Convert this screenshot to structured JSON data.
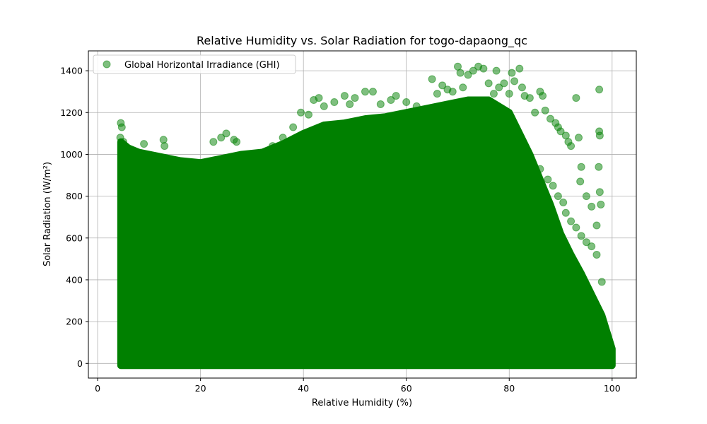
{
  "chart_data": {
    "type": "scatter",
    "title": "Relative Humidity vs. Solar Radiation for togo-dapaong_qc",
    "xlabel": "Relative Humidity (%)",
    "ylabel": "Solar Radiation (W/m²)",
    "xlim": [
      -1.8,
      104.7
    ],
    "ylim": [
      -70,
      1495
    ],
    "xticks": [
      0,
      20,
      40,
      60,
      80,
      100
    ],
    "yticks": [
      0,
      200,
      400,
      600,
      800,
      1000,
      1200,
      1400
    ],
    "grid": true,
    "legend_position": "top-left",
    "series": [
      {
        "name": "Global Horizontal Irradiance (GHI)",
        "color": "#008000",
        "alpha": 0.5,
        "envelope": {
          "x": [
            4.5,
            6,
            8,
            12,
            16,
            20,
            24,
            28,
            32,
            36,
            40,
            44,
            48,
            52,
            56,
            60,
            64,
            68,
            72,
            76,
            80,
            82,
            84,
            86,
            88,
            90,
            92,
            94,
            96,
            98,
            99,
            100
          ],
          "y_max": [
            1060,
            1030,
            1010,
            990,
            970,
            960,
            980,
            1000,
            1010,
            1050,
            1100,
            1140,
            1150,
            1170,
            1180,
            1200,
            1220,
            1240,
            1260,
            1260,
            1200,
            1100,
            1000,
            880,
            760,
            620,
            520,
            430,
            330,
            230,
            150,
            70
          ]
        },
        "points": [
          [
            4.5,
            1150
          ],
          [
            4.7,
            1130
          ],
          [
            4.4,
            1080
          ],
          [
            5.0,
            1060
          ],
          [
            9.0,
            1050
          ],
          [
            12.8,
            1070
          ],
          [
            13.0,
            1040
          ],
          [
            22.5,
            1060
          ],
          [
            24.0,
            1080
          ],
          [
            25.0,
            1100
          ],
          [
            26.5,
            1070
          ],
          [
            27.0,
            1060
          ],
          [
            34.0,
            1040
          ],
          [
            36.0,
            1080
          ],
          [
            38.0,
            1130
          ],
          [
            39.5,
            1200
          ],
          [
            41.0,
            1190
          ],
          [
            42.0,
            1260
          ],
          [
            43.0,
            1270
          ],
          [
            44.0,
            1230
          ],
          [
            46.0,
            1250
          ],
          [
            48.0,
            1280
          ],
          [
            49.0,
            1240
          ],
          [
            50.0,
            1270
          ],
          [
            52.0,
            1300
          ],
          [
            53.5,
            1300
          ],
          [
            55.0,
            1240
          ],
          [
            57.0,
            1260
          ],
          [
            58.0,
            1280
          ],
          [
            60.0,
            1250
          ],
          [
            62.0,
            1230
          ],
          [
            65.0,
            1360
          ],
          [
            66.0,
            1290
          ],
          [
            67.0,
            1330
          ],
          [
            68.0,
            1310
          ],
          [
            69.0,
            1300
          ],
          [
            70.0,
            1420
          ],
          [
            70.5,
            1390
          ],
          [
            71.0,
            1320
          ],
          [
            72.0,
            1380
          ],
          [
            73.0,
            1400
          ],
          [
            74.0,
            1420
          ],
          [
            75.0,
            1410
          ],
          [
            76.0,
            1340
          ],
          [
            77.0,
            1290
          ],
          [
            77.5,
            1400
          ],
          [
            78.0,
            1320
          ],
          [
            79.0,
            1340
          ],
          [
            80.0,
            1290
          ],
          [
            80.5,
            1390
          ],
          [
            81.0,
            1350
          ],
          [
            82.0,
            1410
          ],
          [
            82.5,
            1320
          ],
          [
            83.0,
            1280
          ],
          [
            84.0,
            1270
          ],
          [
            85.0,
            1200
          ],
          [
            86.0,
            1300
          ],
          [
            86.5,
            1280
          ],
          [
            87.0,
            1210
          ],
          [
            88.0,
            1170
          ],
          [
            89.0,
            1150
          ],
          [
            89.5,
            1130
          ],
          [
            90.0,
            1110
          ],
          [
            91.0,
            1090
          ],
          [
            91.5,
            1060
          ],
          [
            92.0,
            1040
          ],
          [
            93.0,
            1270
          ],
          [
            93.5,
            1080
          ],
          [
            94.0,
            940
          ],
          [
            93.8,
            870
          ],
          [
            95.0,
            800
          ],
          [
            96.0,
            750
          ],
          [
            97.0,
            660
          ],
          [
            97.5,
            1110
          ],
          [
            97.6,
            1090
          ],
          [
            97.5,
            1310
          ],
          [
            97.4,
            940
          ],
          [
            97.6,
            820
          ],
          [
            97.8,
            760
          ],
          [
            91.0,
            720
          ],
          [
            92.0,
            680
          ],
          [
            93.0,
            650
          ],
          [
            94.0,
            610
          ],
          [
            95.0,
            580
          ],
          [
            96.0,
            560
          ],
          [
            97.0,
            520
          ],
          [
            98.0,
            390
          ],
          [
            86.0,
            930
          ],
          [
            87.5,
            880
          ],
          [
            88.5,
            850
          ],
          [
            89.5,
            800
          ],
          [
            90.5,
            770
          ]
        ]
      }
    ]
  }
}
